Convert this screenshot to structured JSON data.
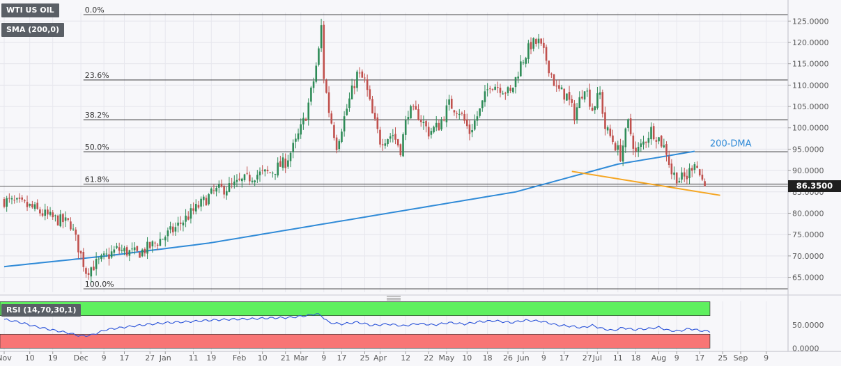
{
  "legend": {
    "symbol": "WTI US OIL",
    "sma": "SMA (200,0)",
    "rsi": "RSI (14,70,30,1)"
  },
  "current_price": "86.3500",
  "colors": {
    "up": "#2e8b57",
    "down": "#c0504d",
    "sma": "#2f8ad7",
    "trendline": "#f5a623",
    "rsi_line": "#2750d8",
    "overbought_zone": "#5ff05f",
    "oversold_zone": "#f87575",
    "background": "#f7f7fa"
  },
  "chart_data": [
    {
      "type": "candlestick",
      "title": "WTI US OIL",
      "ylim": [
        61.5,
        127
      ],
      "y_ticks": [
        "65.0000",
        "70.0000",
        "75.0000",
        "80.0000",
        "85.0000",
        "90.0000",
        "95.0000",
        "100.0000",
        "105.0000",
        "110.0000",
        "115.0000",
        "120.0000",
        "125.0000"
      ],
      "x_ticks": [
        "Nov",
        "10",
        "19",
        "Dec",
        "9",
        "17",
        "27",
        "Jan",
        "11",
        "19",
        "Feb",
        "10",
        "21",
        "Mar",
        "9",
        "17",
        "25",
        "Apr",
        "12",
        "22",
        "May",
        "10",
        "18",
        "26",
        "Jun",
        "9",
        "17",
        "27",
        "Jul",
        "11",
        "18",
        "Aug",
        "9",
        "17",
        "25",
        "Sep",
        "9"
      ],
      "anchors": [
        [
          0,
          83.0
        ],
        [
          10,
          81.5
        ],
        [
          18,
          79.0
        ],
        [
          26,
          77.5
        ],
        [
          32,
          66.5
        ],
        [
          38,
          69.0
        ],
        [
          44,
          71.5
        ],
        [
          52,
          70.5
        ],
        [
          58,
          72.5
        ],
        [
          66,
          76.0
        ],
        [
          74,
          80.5
        ],
        [
          82,
          85.0
        ],
        [
          90,
          86.5
        ],
        [
          98,
          89.0
        ],
        [
          104,
          89.5
        ],
        [
          110,
          92.0
        ],
        [
          114,
          96.5
        ],
        [
          118,
          103.0
        ],
        [
          121,
          111.0
        ],
        [
          123,
          118.0
        ],
        [
          124,
          123.7
        ],
        [
          125,
          112.0
        ],
        [
          127,
          104.0
        ],
        [
          130,
          96.0
        ],
        [
          134,
          104.5
        ],
        [
          138,
          112.5
        ],
        [
          141,
          111.0
        ],
        [
          144,
          103.0
        ],
        [
          147,
          97.0
        ],
        [
          152,
          98.5
        ],
        [
          155,
          95.0
        ],
        [
          158,
          104.0
        ],
        [
          162,
          103.0
        ],
        [
          166,
          99.0
        ],
        [
          170,
          100.5
        ],
        [
          174,
          105.5
        ],
        [
          178,
          104.0
        ],
        [
          182,
          99.0
        ],
        [
          186,
          104.0
        ],
        [
          190,
          110.5
        ],
        [
          194,
          109.5
        ],
        [
          198,
          108.0
        ],
        [
          202,
          115.0
        ],
        [
          206,
          119.5
        ],
        [
          209,
          120.0
        ],
        [
          212,
          116.0
        ],
        [
          216,
          109.0
        ],
        [
          220,
          107.5
        ],
        [
          223,
          103.0
        ],
        [
          227,
          110.0
        ],
        [
          230,
          104.5
        ],
        [
          233,
          108.0
        ],
        [
          235,
          100.0
        ],
        [
          238,
          97.0
        ],
        [
          241,
          93.5
        ],
        [
          244,
          101.0
        ],
        [
          247,
          94.0
        ],
        [
          250,
          96.5
        ],
        [
          253,
          99.5
        ],
        [
          256,
          97.5
        ],
        [
          259,
          94.5
        ],
        [
          261,
          89.5
        ],
        [
          264,
          88.0
        ],
        [
          267,
          88.5
        ],
        [
          270,
          92.5
        ],
        [
          272,
          89.0
        ],
        [
          274,
          86.35
        ]
      ],
      "sma_200": [
        [
          0,
          67.5
        ],
        [
          40,
          70.0
        ],
        [
          80,
          73.0
        ],
        [
          120,
          77.0
        ],
        [
          160,
          81.0
        ],
        [
          200,
          85.0
        ],
        [
          240,
          91.5
        ],
        [
          270,
          94.5
        ]
      ],
      "trendline": [
        [
          222,
          89.8
        ],
        [
          258,
          86.3
        ],
        [
          280,
          84.2
        ]
      ],
      "annotations": [
        "200-DMA"
      ],
      "fibonacci": [
        {
          "label": "0.0%",
          "value": 126.5
        },
        {
          "label": "23.6%",
          "value": 111.2
        },
        {
          "label": "38.2%",
          "value": 101.9
        },
        {
          "label": "50.0%",
          "value": 94.4
        },
        {
          "label": "61.8%",
          "value": 86.8
        },
        {
          "label": "100.0%",
          "value": 62.3
        }
      ]
    },
    {
      "type": "line",
      "title": "RSI (14,70,30,1)",
      "ylim": [
        -4,
        101
      ],
      "y_ticks": [
        "0.0000",
        "50.0000"
      ],
      "bands": {
        "overbought": [
          70,
          100
        ],
        "oversold": [
          0,
          30
        ]
      },
      "values": [
        [
          0,
          62
        ],
        [
          6,
          56
        ],
        [
          12,
          47
        ],
        [
          18,
          40
        ],
        [
          24,
          34
        ],
        [
          30,
          26
        ],
        [
          34,
          28
        ],
        [
          40,
          40
        ],
        [
          48,
          46
        ],
        [
          56,
          51
        ],
        [
          64,
          55
        ],
        [
          72,
          57
        ],
        [
          80,
          60
        ],
        [
          88,
          62
        ],
        [
          96,
          63
        ],
        [
          104,
          65
        ],
        [
          112,
          66
        ],
        [
          118,
          70
        ],
        [
          122,
          74
        ],
        [
          124,
          70
        ],
        [
          127,
          55
        ],
        [
          132,
          52
        ],
        [
          138,
          56
        ],
        [
          144,
          49
        ],
        [
          150,
          52
        ],
        [
          156,
          48
        ],
        [
          162,
          53
        ],
        [
          168,
          50
        ],
        [
          174,
          55
        ],
        [
          180,
          52
        ],
        [
          186,
          57
        ],
        [
          192,
          59
        ],
        [
          198,
          55
        ],
        [
          204,
          60
        ],
        [
          210,
          58
        ],
        [
          216,
          50
        ],
        [
          222,
          47
        ],
        [
          226,
          44
        ],
        [
          230,
          49
        ],
        [
          234,
          42
        ],
        [
          238,
          38
        ],
        [
          242,
          44
        ],
        [
          246,
          40
        ],
        [
          252,
          42
        ],
        [
          256,
          45
        ],
        [
          260,
          38
        ],
        [
          264,
          37
        ],
        [
          268,
          42
        ],
        [
          272,
          38
        ],
        [
          276,
          36
        ]
      ]
    }
  ]
}
